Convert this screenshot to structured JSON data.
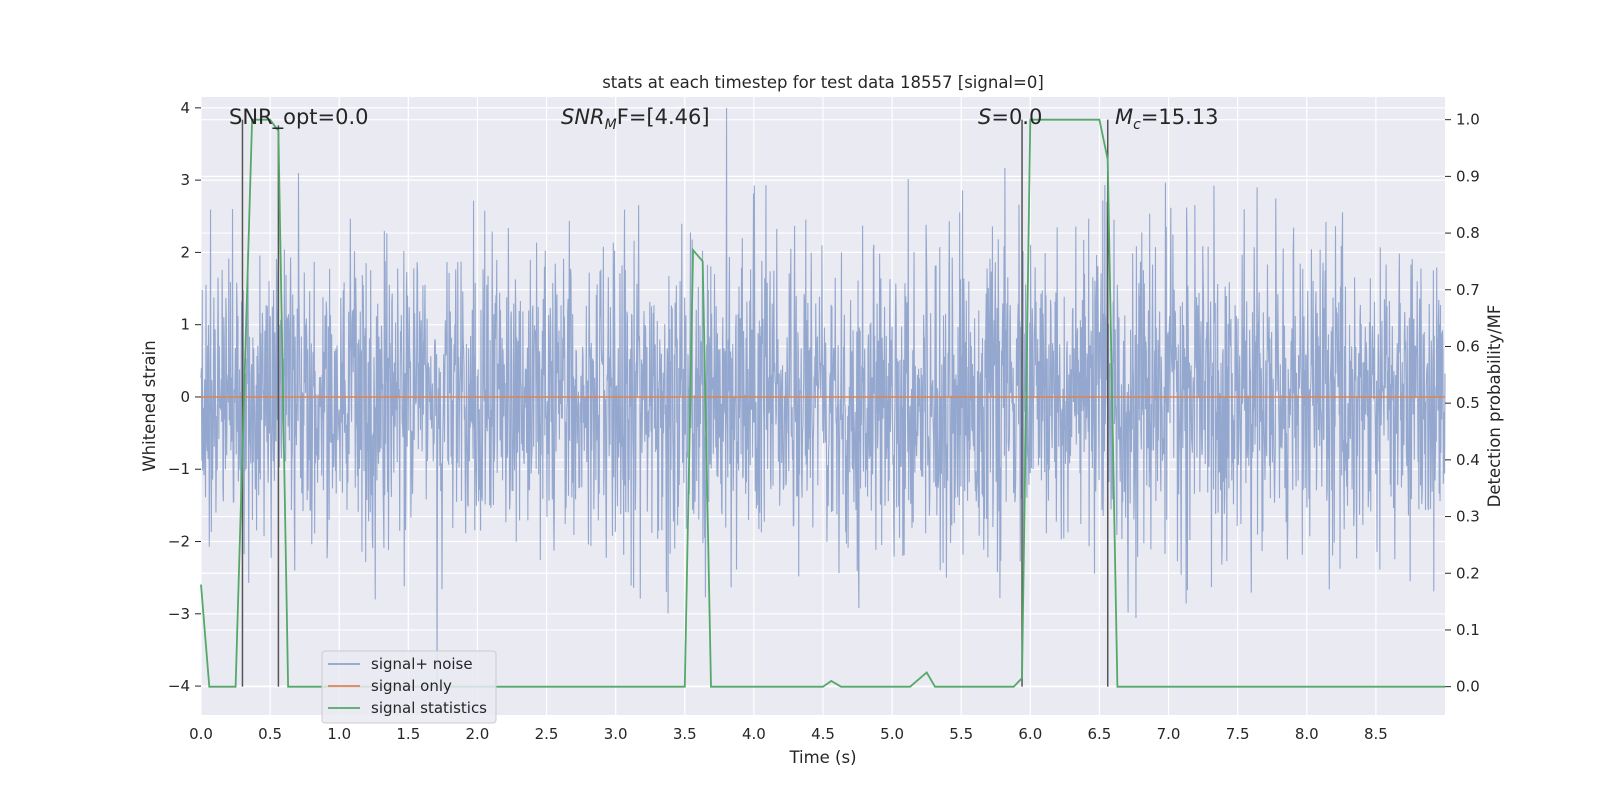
{
  "chart_data": {
    "type": "line",
    "title": "stats at each timestep for test data 18557 [signal=0]",
    "xlabel": "Time (s)",
    "ylabel": "Whitened strain",
    "y2label": "Detection probability/MF",
    "xlim": [
      0.0,
      9.0
    ],
    "ylim": [
      -4.4,
      4.15
    ],
    "y2lim": [
      -0.05,
      1.04
    ],
    "xticks": [
      "0.0",
      "0.5",
      "1.0",
      "1.5",
      "2.0",
      "2.5",
      "3.0",
      "3.5",
      "4.0",
      "4.5",
      "5.0",
      "5.5",
      "6.0",
      "6.5",
      "7.0",
      "7.5",
      "8.0",
      "8.5"
    ],
    "yticks": [
      "4",
      "3",
      "2",
      "1",
      "0",
      "−1",
      "−2",
      "−3",
      "−4"
    ],
    "y2ticks": [
      "1.0",
      "0.9",
      "0.8",
      "0.7",
      "0.6",
      "0.5",
      "0.4",
      "0.3",
      "0.2",
      "0.1",
      "0.0"
    ],
    "grid": true,
    "legend_position": "lower-left",
    "annotations": {
      "snr_opt": "SNR_opt=0.0",
      "snr_mf": "SNR",
      "snr_mf_sub": "M",
      "snr_mf_rest": "F=[4.46]",
      "s_sym": "S",
      "s_val": "=0.0",
      "mc_sym": "M",
      "mc_sub": "c",
      "mc_val": "=15.13"
    },
    "series": [
      {
        "name": "signal+ noise",
        "color": "#8fa3cb",
        "description_kind": "noise",
        "amplitude_range": [
          -3.9,
          4.0
        ],
        "x_range": [
          0.0,
          9.0
        ]
      },
      {
        "name": "signal only",
        "color": "#dd8452",
        "x": [
          0.0,
          9.0
        ],
        "y": [
          0.0,
          0.0
        ]
      },
      {
        "name": "signal statistics",
        "color": "#55a868",
        "axis": "right",
        "x": [
          0.0,
          0.06,
          0.25,
          0.37,
          0.5,
          0.56,
          0.63,
          0.69,
          1.0,
          2.0,
          3.5,
          3.56,
          3.63,
          3.69,
          3.75,
          4.0,
          4.5,
          4.56,
          4.63,
          5.0,
          5.13,
          5.25,
          5.31,
          5.38,
          5.5,
          5.88,
          5.94,
          6.0,
          6.5,
          6.56,
          6.63,
          6.69,
          7.0,
          8.0,
          9.0
        ],
        "y": [
          0.18,
          0.0,
          0.0,
          1.0,
          1.0,
          0.98,
          0.0,
          0.0,
          0.0,
          0.0,
          0.0,
          0.77,
          0.75,
          0.0,
          0.0,
          0.0,
          0.0,
          0.01,
          0.0,
          0.0,
          0.0,
          0.025,
          0.0,
          0.0,
          0.0,
          0.0,
          0.015,
          1.0,
          1.0,
          0.93,
          0.0,
          0.0,
          0.0,
          0.0,
          0.0
        ]
      }
    ],
    "vlines": [
      {
        "x": 0.3,
        "ymax": 1.0
      },
      {
        "x": 0.56,
        "ymax": 0.99
      },
      {
        "x": 5.94,
        "ymax": 1.0
      },
      {
        "x": 6.56,
        "ymax": 1.0
      }
    ],
    "colors": {
      "background": "#eaeaf2",
      "grid": "#ffffff",
      "vline": "#555555"
    }
  }
}
